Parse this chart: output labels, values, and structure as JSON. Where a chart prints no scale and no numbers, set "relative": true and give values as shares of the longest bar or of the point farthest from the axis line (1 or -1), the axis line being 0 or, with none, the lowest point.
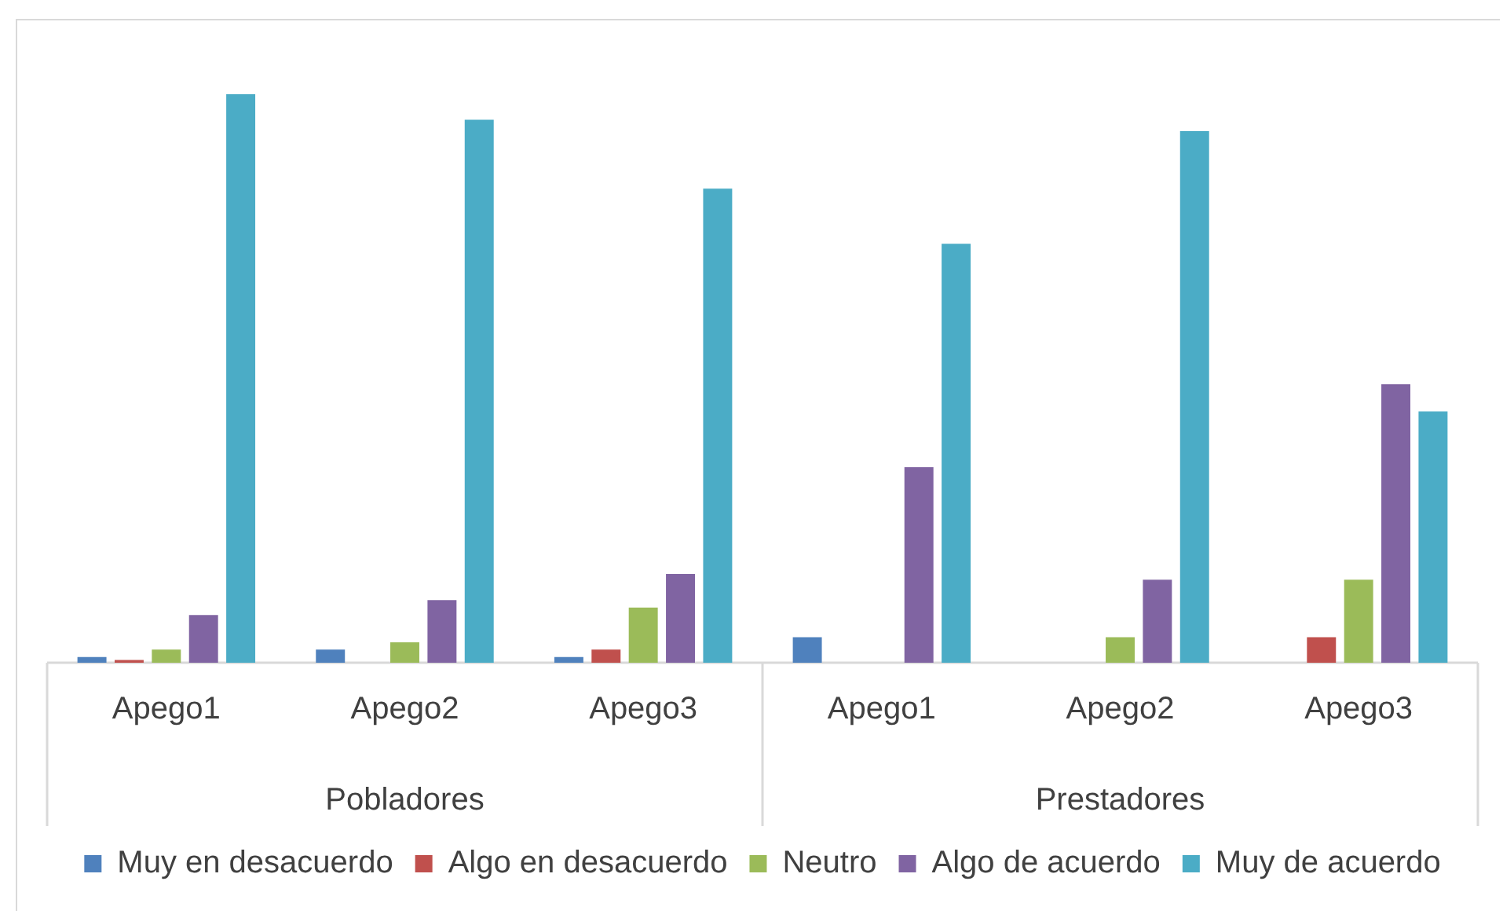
{
  "chart_data": {
    "type": "bar",
    "relative": true,
    "legend": "bottom",
    "grid": false,
    "categories": [
      "Apego1",
      "Apego2",
      "Apego3",
      "Apego1",
      "Apego2",
      "Apego3"
    ],
    "annotations": [
      "Pobladores",
      "Prestadores"
    ],
    "series": [
      {
        "name": "Muy en desacuerdo",
        "color": "#4f81bd",
        "values": [
          0.01,
          0.023,
          0.01,
          0.045,
          0,
          0
        ]
      },
      {
        "name": "Algo en desacuerdo",
        "color": "#c0504d",
        "values": [
          0.005,
          0,
          0.023,
          0,
          0,
          0.045
        ]
      },
      {
        "name": "Neutro",
        "color": "#9bbb59",
        "values": [
          0.023,
          0.036,
          0.097,
          0,
          0.045,
          0.146
        ]
      },
      {
        "name": "Algo de acuerdo",
        "color": "#8064a2",
        "values": [
          0.084,
          0.11,
          0.156,
          0.344,
          0.146,
          0.49
        ]
      },
      {
        "name": "Muy de acuerdo",
        "color": "#4bacc6",
        "values": [
          1,
          0.955,
          0.834,
          0.737,
          0.935,
          0.442
        ]
      }
    ]
  }
}
